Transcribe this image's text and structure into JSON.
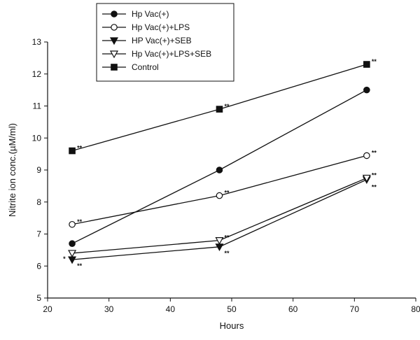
{
  "chart_data": {
    "type": "line",
    "title": "",
    "xlabel": "Hours",
    "ylabel": "Nitrite ion conc.(µM/ml)",
    "xlim": [
      20,
      80
    ],
    "ylim": [
      5,
      13
    ],
    "xticks": [
      "20",
      "30",
      "40",
      "50",
      "60",
      "70",
      "80"
    ],
    "yticks": [
      "5",
      "6",
      "7",
      "8",
      "9",
      "10",
      "11",
      "12",
      "13"
    ],
    "grid": false,
    "legend_position": "top-left",
    "x": [
      24,
      48,
      72
    ],
    "series": [
      {
        "name": "Hp Vac(+)",
        "marker": "filled-circle",
        "values": [
          6.7,
          9.0,
          11.5
        ],
        "annotations": []
      },
      {
        "name": "Hp Vac(+)+LPS",
        "marker": "open-circle",
        "values": [
          7.3,
          8.2,
          9.45
        ],
        "annotations": [
          "**",
          "**",
          "**"
        ]
      },
      {
        "name": "HP Vac(+)+SEB",
        "marker": "filled-triangle-down",
        "values": [
          6.2,
          6.6,
          8.7
        ],
        "annotations": [
          "**",
          "**",
          "**"
        ]
      },
      {
        "name": "Hp Vac(+)+LPS+SEB",
        "marker": "open-triangle-down",
        "values": [
          6.4,
          6.8,
          8.75
        ],
        "annotations": [
          "",
          "**",
          "**"
        ]
      },
      {
        "name": "Control",
        "marker": "filled-square",
        "values": [
          9.6,
          10.9,
          12.3
        ],
        "annotations": [
          "**",
          "**",
          "**"
        ]
      }
    ],
    "extra_annotations": [
      "*"
    ]
  }
}
